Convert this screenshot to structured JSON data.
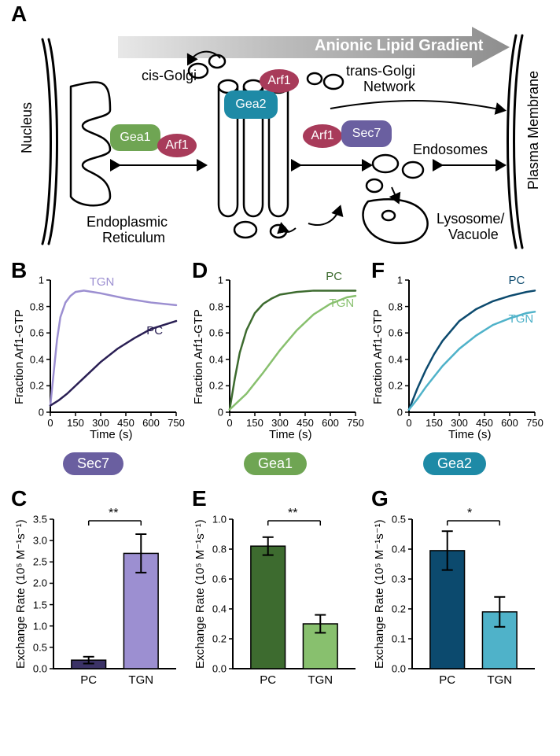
{
  "panelA": {
    "labels": {
      "A": "A",
      "nucleus": "Nucleus",
      "pm": "Plasma Membrane",
      "cisGolgi_pre": "cis",
      "cisGolgi_post": "-Golgi",
      "tgn_pre": "trans",
      "tgn_post": "-Golgi",
      "tgn_line2": "Network",
      "er": "Endoplasmic",
      "er2": "Reticulum",
      "endosomes": "Endosomes",
      "lyso": "Lysosome/",
      "lyso2": "Vacuole",
      "gradient": "Anionic Lipid Gradient"
    },
    "proteins": {
      "Gea1": {
        "color": "#6fa553"
      },
      "Gea2": {
        "color": "#1e8aa6"
      },
      "Sec7": {
        "color": "#6a5fa0"
      },
      "Arf1": {
        "color": "#a83b5a"
      }
    },
    "outline_stroke": "#000000",
    "arrow_fill": "#8e8e8e"
  },
  "lineCharts": {
    "xlabel": "Time (s)",
    "ylabel": "Fraction Arf1-GTP",
    "xlim": [
      0,
      750
    ],
    "xtick_step": 150,
    "ylim": [
      0,
      1
    ],
    "ytick_step": 0.2,
    "B": {
      "label": "B",
      "series": [
        {
          "name": "TGN",
          "color": "#9c8fd1",
          "labelPos": [
            280,
            0.93
          ],
          "points": [
            [
              0,
              0.05
            ],
            [
              20,
              0.3
            ],
            [
              40,
              0.55
            ],
            [
              60,
              0.72
            ],
            [
              90,
              0.83
            ],
            [
              120,
              0.88
            ],
            [
              150,
              0.91
            ],
            [
              200,
              0.92
            ],
            [
              300,
              0.9
            ],
            [
              450,
              0.86
            ],
            [
              600,
              0.83
            ],
            [
              750,
              0.81
            ]
          ]
        },
        {
          "name": "PC",
          "color": "#2a1f54",
          "labelPos": [
            620,
            0.56
          ],
          "points": [
            [
              0,
              0.05
            ],
            [
              50,
              0.09
            ],
            [
              100,
              0.14
            ],
            [
              150,
              0.2
            ],
            [
              200,
              0.26
            ],
            [
              300,
              0.38
            ],
            [
              400,
              0.48
            ],
            [
              500,
              0.56
            ],
            [
              600,
              0.63
            ],
            [
              700,
              0.67
            ],
            [
              750,
              0.69
            ]
          ]
        }
      ]
    },
    "D": {
      "label": "D",
      "series": [
        {
          "name": "PC",
          "color": "#3d6b2f",
          "labelPos": [
            620,
            0.97
          ],
          "points": [
            [
              0,
              0.02
            ],
            [
              30,
              0.25
            ],
            [
              60,
              0.45
            ],
            [
              100,
              0.62
            ],
            [
              150,
              0.75
            ],
            [
              200,
              0.82
            ],
            [
              250,
              0.86
            ],
            [
              300,
              0.89
            ],
            [
              400,
              0.91
            ],
            [
              500,
              0.92
            ],
            [
              600,
              0.92
            ],
            [
              700,
              0.92
            ],
            [
              750,
              0.92
            ]
          ]
        },
        {
          "name": "TGN",
          "color": "#88c06e",
          "labelPos": [
            640,
            0.77
          ],
          "points": [
            [
              0,
              0.02
            ],
            [
              50,
              0.08
            ],
            [
              100,
              0.14
            ],
            [
              150,
              0.22
            ],
            [
              200,
              0.3
            ],
            [
              300,
              0.47
            ],
            [
              400,
              0.62
            ],
            [
              500,
              0.74
            ],
            [
              600,
              0.82
            ],
            [
              700,
              0.87
            ],
            [
              750,
              0.88
            ]
          ]
        }
      ]
    },
    "F": {
      "label": "F",
      "series": [
        {
          "name": "PC",
          "color": "#0c4a6e",
          "labelPos": [
            640,
            0.94
          ],
          "points": [
            [
              0,
              0.02
            ],
            [
              50,
              0.18
            ],
            [
              100,
              0.32
            ],
            [
              150,
              0.44
            ],
            [
              200,
              0.54
            ],
            [
              300,
              0.69
            ],
            [
              400,
              0.78
            ],
            [
              500,
              0.84
            ],
            [
              600,
              0.88
            ],
            [
              700,
              0.91
            ],
            [
              750,
              0.92
            ]
          ]
        },
        {
          "name": "TGN",
          "color": "#4fb2c9",
          "labelPos": [
            640,
            0.65
          ],
          "points": [
            [
              0,
              0.02
            ],
            [
              50,
              0.1
            ],
            [
              100,
              0.19
            ],
            [
              150,
              0.27
            ],
            [
              200,
              0.35
            ],
            [
              300,
              0.48
            ],
            [
              400,
              0.58
            ],
            [
              500,
              0.66
            ],
            [
              600,
              0.71
            ],
            [
              700,
              0.75
            ],
            [
              750,
              0.76
            ]
          ]
        }
      ]
    }
  },
  "pills": {
    "Sec7": {
      "text": "Sec7",
      "color": "#6a5fa0"
    },
    "Gea1": {
      "text": "Gea1",
      "color": "#6fa553"
    },
    "Gea2": {
      "text": "Gea2",
      "color": "#1e8aa6"
    }
  },
  "barCharts": {
    "xlabel": "",
    "unit_html": "Exchange Rate (10⁵ M⁻¹s⁻¹)",
    "categories": [
      "PC",
      "TGN"
    ],
    "C": {
      "label": "C",
      "ylim": [
        0,
        3.5
      ],
      "ytick_step": 0.5,
      "bars": [
        {
          "val": 0.2,
          "err": 0.08,
          "color": "#3b3266"
        },
        {
          "val": 2.7,
          "err": 0.45,
          "color": "#9c8fd1"
        }
      ],
      "sig": "**"
    },
    "E": {
      "label": "E",
      "ylim": [
        0,
        1.0
      ],
      "ytick_step": 0.2,
      "bars": [
        {
          "val": 0.82,
          "err": 0.06,
          "color": "#3d6b2f"
        },
        {
          "val": 0.3,
          "err": 0.06,
          "color": "#88c06e"
        }
      ],
      "sig": "**"
    },
    "G": {
      "label": "G",
      "ylim": [
        0,
        0.5
      ],
      "ytick_step": 0.1,
      "bars": [
        {
          "val": 0.395,
          "err": 0.065,
          "color": "#0c4a6e"
        },
        {
          "val": 0.19,
          "err": 0.05,
          "color": "#4fb2c9"
        }
      ],
      "sig": "*"
    }
  },
  "style": {
    "axis_stroke": "#000000",
    "axis_width": 2,
    "line_width": 2.5,
    "bar_stroke": "#000000",
    "err_stroke": "#000000",
    "err_width": 2,
    "tick_len": 5
  }
}
